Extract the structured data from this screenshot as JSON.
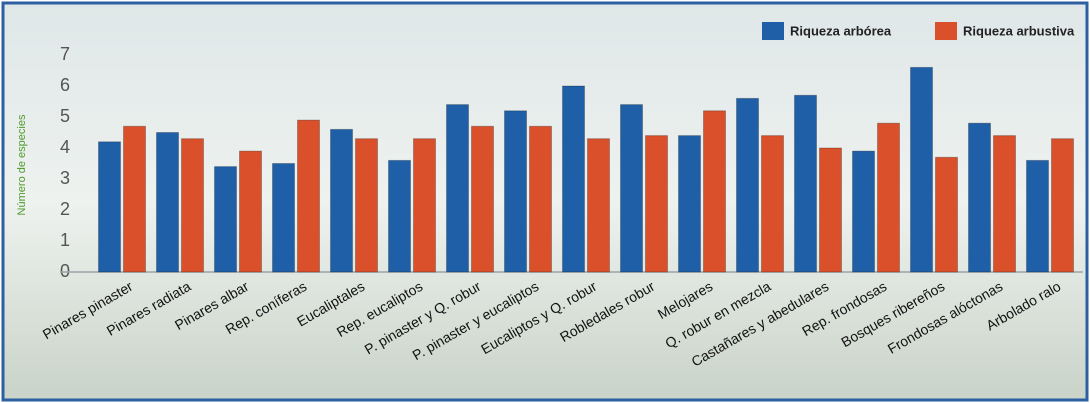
{
  "chart_data": {
    "type": "bar",
    "y_label": "Número de especies",
    "categories": [
      "Pinares pinaster",
      "Pinares radiata",
      "Pinares albar",
      "Rep. coníferas",
      "Eucaliptales",
      "Rep. eucaliptos",
      "P. pinaster y Q. robur",
      "P. pinaster y eucaliptos",
      "Eucaliptos y Q. robur",
      "Robledales robur",
      "Melojares",
      "Q. robur en mezcla",
      "Castañares y abedulares",
      "Rep. frondosas",
      "Bosques ribereños",
      "Frondosas alóctonas",
      "Arbolado ralo"
    ],
    "series": [
      {
        "name": "Riqueza arbórea",
        "color": "#1f5fa8",
        "values": [
          4.2,
          4.5,
          3.4,
          3.5,
          4.6,
          3.6,
          5.4,
          5.2,
          6.0,
          5.4,
          4.4,
          5.6,
          5.7,
          3.9,
          6.6,
          4.8,
          3.6
        ]
      },
      {
        "name": "Riqueza arbustiva",
        "color": "#d9502a",
        "values": [
          4.7,
          4.3,
          3.9,
          4.9,
          4.3,
          4.3,
          4.7,
          4.7,
          4.3,
          4.4,
          5.2,
          4.4,
          4.0,
          4.8,
          3.7,
          4.4,
          4.3
        ]
      }
    ],
    "ylim": [
      0,
      7
    ],
    "yticks": [
      0,
      1,
      2,
      3,
      4,
      5,
      6,
      7
    ],
    "legend": "top-right"
  }
}
